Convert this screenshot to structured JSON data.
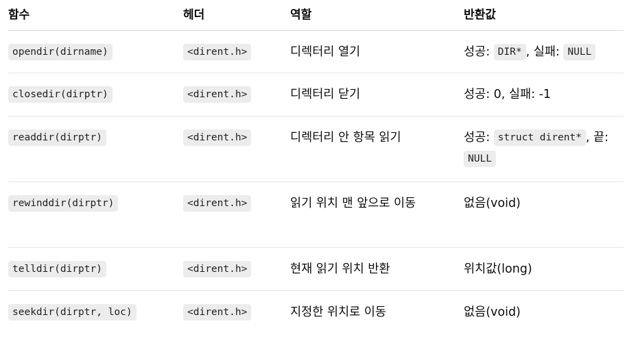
{
  "headers": {
    "func": "함수",
    "header": "헤더",
    "role": "역할",
    "ret": "반환값"
  },
  "rows": [
    {
      "func": "opendir(dirname)",
      "header": "<dirent.h>",
      "role": "디렉터리 열기",
      "ret_prefix": "성공: ",
      "ret_code1": "DIR*",
      "ret_mid": ", 실패: ",
      "ret_code2": "NULL"
    },
    {
      "func": "closedir(dirptr)",
      "header": "<dirent.h>",
      "role": "디렉터리 닫기",
      "ret_text": "성공: 0, 실패: -1"
    },
    {
      "func": "readdir(dirptr)",
      "header": "<dirent.h>",
      "role": "디렉터리 안 항목 읽기",
      "ret_prefix": "성공: ",
      "ret_code1": "struct dirent*",
      "ret_mid": ", 끝: ",
      "ret_code2": "NULL"
    },
    {
      "func": "rewinddir(dirptr)",
      "header": "<dirent.h>",
      "role": "읽기 위치 맨 앞으로 이동",
      "ret_text": "없음(void)"
    },
    {
      "func": "telldir(dirptr)",
      "header": "<dirent.h>",
      "role": "현재 읽기 위치 반환",
      "ret_text": "위치값(long)"
    },
    {
      "func": "seekdir(dirptr, loc)",
      "header": "<dirent.h>",
      "role": "지정한 위치로 이동",
      "ret_text": "없음(void)"
    }
  ]
}
